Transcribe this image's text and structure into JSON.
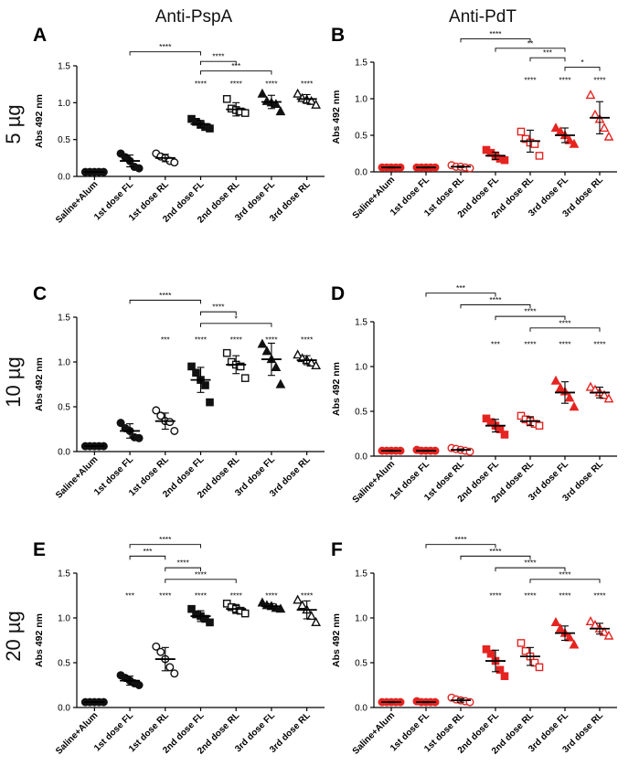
{
  "column_titles": [
    "Anti-PspA",
    "Anti-PdT"
  ],
  "row_labels": [
    "5 µg",
    "10 µg",
    "20 µg"
  ],
  "colors": {
    "PspA": "#111111",
    "PdT": "#e52421",
    "axis": "#000000"
  },
  "chart_data": [
    {
      "panel": "A",
      "type": "scatter",
      "column": "Anti-PspA",
      "row": "5 µg",
      "ylabel": "Abs 492 nm",
      "ylim": [
        0,
        1.5
      ],
      "yticks": [
        "0.0",
        "0.5",
        "1.0",
        "1.5"
      ],
      "categories": [
        "Saline+Alum",
        "1st dose FL",
        "1st dose RL",
        "2nd dose FL",
        "2nd dose RL",
        "3rd dose FL",
        "3rd dose RL"
      ],
      "series": [
        {
          "name": "Saline+Alum",
          "marker": "circle-filled",
          "mean": 0.06,
          "sd": 0.005,
          "points": [
            0.06,
            0.06,
            0.06,
            0.06,
            0.06
          ]
        },
        {
          "name": "1st dose FL",
          "marker": "circle-filled",
          "mean": 0.21,
          "sd": 0.08,
          "points": [
            0.31,
            0.26,
            0.21,
            0.13,
            0.11
          ]
        },
        {
          "name": "1st dose RL",
          "marker": "circle-open",
          "mean": 0.25,
          "sd": 0.05,
          "points": [
            0.31,
            0.27,
            0.25,
            0.21,
            0.19
          ]
        },
        {
          "name": "2nd dose FL",
          "marker": "square-filled",
          "mean": 0.71,
          "sd": 0.05,
          "points": [
            0.78,
            0.74,
            0.7,
            0.67,
            0.65
          ]
        },
        {
          "name": "2nd dose RL",
          "marker": "square-open",
          "mean": 0.91,
          "sd": 0.09,
          "points": [
            1.05,
            0.92,
            0.9,
            0.88,
            0.86
          ]
        },
        {
          "name": "3rd dose FL",
          "marker": "triangle-filled",
          "mean": 1.01,
          "sd": 0.09,
          "points": [
            1.12,
            1.02,
            1.0,
            0.98,
            0.88
          ]
        },
        {
          "name": "3rd dose RL",
          "marker": "triangle-open",
          "mean": 1.05,
          "sd": 0.06,
          "points": [
            1.12,
            1.06,
            1.04,
            1.02,
            0.97
          ]
        }
      ],
      "stars_above": [
        "",
        "",
        "",
        "****",
        "****",
        "****",
        "****"
      ],
      "brackets": [
        {
          "from": "1st dose FL",
          "to": "2nd dose FL",
          "label": "****"
        },
        {
          "from": "2nd dose FL",
          "to": "2nd dose RL",
          "label": "****"
        },
        {
          "from": "2nd dose FL",
          "to": "3rd dose FL",
          "label": "***"
        }
      ]
    },
    {
      "panel": "B",
      "type": "scatter",
      "column": "Anti-PdT",
      "row": "5 µg",
      "ylabel": "Abs 492 nm",
      "ylim": [
        0,
        1.5
      ],
      "yticks": [
        "0.0",
        "0.5",
        "1.0",
        "1.5"
      ],
      "categories": [
        "Saline+Alum",
        "1st dose FL",
        "1st dose RL",
        "2nd dose FL",
        "2nd dose RL",
        "3rd dose FL",
        "3rd dose RL"
      ],
      "series": [
        {
          "name": "Saline+Alum",
          "marker": "circle-filled",
          "mean": 0.06,
          "sd": 0.005,
          "points": [
            0.06,
            0.06,
            0.06,
            0.06,
            0.06
          ]
        },
        {
          "name": "1st dose FL",
          "marker": "circle-filled",
          "mean": 0.06,
          "sd": 0.005,
          "points": [
            0.06,
            0.06,
            0.06,
            0.06,
            0.06
          ]
        },
        {
          "name": "1st dose RL",
          "marker": "circle-open",
          "mean": 0.07,
          "sd": 0.01,
          "points": [
            0.09,
            0.07,
            0.07,
            0.06,
            0.05
          ]
        },
        {
          "name": "2nd dose FL",
          "marker": "square-filled",
          "mean": 0.22,
          "sd": 0.05,
          "points": [
            0.3,
            0.26,
            0.21,
            0.18,
            0.16
          ]
        },
        {
          "name": "2nd dose RL",
          "marker": "square-open",
          "mean": 0.42,
          "sd": 0.15,
          "points": [
            0.55,
            0.45,
            0.4,
            0.38,
            0.22
          ]
        },
        {
          "name": "3rd dose FL",
          "marker": "triangle-filled",
          "mean": 0.5,
          "sd": 0.1,
          "points": [
            0.6,
            0.55,
            0.5,
            0.43,
            0.38
          ]
        },
        {
          "name": "3rd dose RL",
          "marker": "triangle-open",
          "mean": 0.74,
          "sd": 0.22,
          "points": [
            1.05,
            0.78,
            0.72,
            0.6,
            0.48
          ]
        }
      ],
      "stars_above": [
        "",
        "",
        "",
        "",
        "****",
        "****",
        "****"
      ],
      "brackets": [
        {
          "from": "1st dose RL",
          "to": "2nd dose RL",
          "label": "****"
        },
        {
          "from": "2nd dose FL",
          "to": "3rd dose FL",
          "label": "**"
        },
        {
          "from": "2nd dose RL",
          "to": "3rd dose FL",
          "label": "***"
        },
        {
          "from": "3rd dose FL",
          "to": "3rd dose RL",
          "label": "*"
        }
      ]
    },
    {
      "panel": "C",
      "type": "scatter",
      "column": "Anti-PspA",
      "row": "10 µg",
      "ylabel": "Abs 492 nm",
      "ylim": [
        0,
        1.5
      ],
      "yticks": [
        "0.0",
        "0.5",
        "1.0",
        "1.5"
      ],
      "categories": [
        "Saline+Alum",
        "1st dose FL",
        "1st dose RL",
        "2nd dose FL",
        "2nd dose RL",
        "3rd dose FL",
        "3rd dose RL"
      ],
      "series": [
        {
          "name": "Saline+Alum",
          "marker": "circle-filled",
          "mean": 0.06,
          "sd": 0.005,
          "points": [
            0.06,
            0.06,
            0.06,
            0.06,
            0.06
          ]
        },
        {
          "name": "1st dose FL",
          "marker": "circle-filled",
          "mean": 0.23,
          "sd": 0.08,
          "points": [
            0.32,
            0.26,
            0.23,
            0.16,
            0.15
          ]
        },
        {
          "name": "1st dose RL",
          "marker": "circle-open",
          "mean": 0.34,
          "sd": 0.09,
          "points": [
            0.46,
            0.4,
            0.34,
            0.33,
            0.23
          ]
        },
        {
          "name": "2nd dose FL",
          "marker": "square-filled",
          "mean": 0.8,
          "sd": 0.14,
          "points": [
            0.95,
            0.88,
            0.8,
            0.74,
            0.55
          ]
        },
        {
          "name": "2nd dose RL",
          "marker": "square-open",
          "mean": 0.97,
          "sd": 0.1,
          "points": [
            1.1,
            1.0,
            0.97,
            0.95,
            0.82
          ]
        },
        {
          "name": "3rd dose FL",
          "marker": "triangle-filled",
          "mean": 1.03,
          "sd": 0.18,
          "points": [
            1.2,
            1.12,
            1.03,
            0.94,
            0.75
          ]
        },
        {
          "name": "3rd dose RL",
          "marker": "triangle-open",
          "mean": 1.02,
          "sd": 0.05,
          "points": [
            1.08,
            1.04,
            1.02,
            0.99,
            0.96
          ]
        }
      ],
      "stars_above": [
        "",
        "",
        "***",
        "****",
        "****",
        "****",
        "****"
      ],
      "brackets": [
        {
          "from": "1st dose FL",
          "to": "2nd dose FL",
          "label": "****"
        },
        {
          "from": "2nd dose FL",
          "to": "2nd dose RL",
          "label": "****"
        },
        {
          "from": "2nd dose FL",
          "to": "3rd dose FL",
          "label": "*"
        }
      ]
    },
    {
      "panel": "D",
      "type": "scatter",
      "column": "Anti-PdT",
      "row": "10 µg",
      "ylabel": "Abs 492 nm",
      "ylim": [
        0,
        1.5
      ],
      "yticks": [
        "0.0",
        "0.5",
        "1.0",
        "1.5"
      ],
      "categories": [
        "Saline+Alum",
        "1st dose FL",
        "1st dose RL",
        "2nd dose FL",
        "2nd dose RL",
        "3rd dose FL",
        "3rd dose RL"
      ],
      "series": [
        {
          "name": "Saline+Alum",
          "marker": "circle-filled",
          "mean": 0.06,
          "sd": 0.005,
          "points": [
            0.06,
            0.06,
            0.06,
            0.06,
            0.06
          ]
        },
        {
          "name": "1st dose FL",
          "marker": "circle-filled",
          "mean": 0.06,
          "sd": 0.005,
          "points": [
            0.07,
            0.06,
            0.06,
            0.06,
            0.06
          ]
        },
        {
          "name": "1st dose RL",
          "marker": "circle-open",
          "mean": 0.07,
          "sd": 0.01,
          "points": [
            0.09,
            0.08,
            0.07,
            0.06,
            0.05
          ]
        },
        {
          "name": "2nd dose FL",
          "marker": "square-filled",
          "mean": 0.34,
          "sd": 0.07,
          "points": [
            0.42,
            0.38,
            0.34,
            0.3,
            0.24
          ]
        },
        {
          "name": "2nd dose RL",
          "marker": "square-open",
          "mean": 0.39,
          "sd": 0.05,
          "points": [
            0.45,
            0.41,
            0.39,
            0.36,
            0.34
          ]
        },
        {
          "name": "3rd dose FL",
          "marker": "triangle-filled",
          "mean": 0.71,
          "sd": 0.12,
          "points": [
            0.84,
            0.76,
            0.72,
            0.65,
            0.55
          ]
        },
        {
          "name": "3rd dose RL",
          "marker": "triangle-open",
          "mean": 0.71,
          "sd": 0.06,
          "points": [
            0.77,
            0.74,
            0.71,
            0.68,
            0.64
          ]
        }
      ],
      "stars_above": [
        "",
        "",
        "",
        "***",
        "****",
        "****",
        "****"
      ],
      "brackets": [
        {
          "from": "1st dose FL",
          "to": "2nd dose FL",
          "label": "***"
        },
        {
          "from": "1st dose RL",
          "to": "2nd dose RL",
          "label": "****"
        },
        {
          "from": "2nd dose FL",
          "to": "3rd dose FL",
          "label": "****"
        },
        {
          "from": "2nd dose RL",
          "to": "3rd dose RL",
          "label": "****"
        }
      ]
    },
    {
      "panel": "E",
      "type": "scatter",
      "column": "Anti-PspA",
      "row": "20 µg",
      "ylabel": "Abs 492 nm",
      "ylim": [
        0,
        1.5
      ],
      "yticks": [
        "0.0",
        "0.5",
        "1.0",
        "1.5"
      ],
      "categories": [
        "Saline+Alum",
        "1st dose FL",
        "1st dose RL",
        "2nd dose FL",
        "2nd dose RL",
        "3rd dose FL",
        "3rd dose RL"
      ],
      "series": [
        {
          "name": "Saline+Alum",
          "marker": "circle-filled",
          "mean": 0.06,
          "sd": 0.005,
          "points": [
            0.06,
            0.06,
            0.06,
            0.06,
            0.06
          ]
        },
        {
          "name": "1st dose FL",
          "marker": "circle-filled",
          "mean": 0.3,
          "sd": 0.05,
          "points": [
            0.36,
            0.33,
            0.3,
            0.27,
            0.25
          ]
        },
        {
          "name": "1st dose RL",
          "marker": "circle-open",
          "mean": 0.54,
          "sd": 0.13,
          "points": [
            0.68,
            0.62,
            0.54,
            0.45,
            0.38
          ]
        },
        {
          "name": "2nd dose FL",
          "marker": "square-filled",
          "mean": 1.02,
          "sd": 0.06,
          "points": [
            1.1,
            1.04,
            1.02,
            0.99,
            0.95
          ]
        },
        {
          "name": "2nd dose RL",
          "marker": "square-open",
          "mean": 1.1,
          "sd": 0.05,
          "points": [
            1.16,
            1.12,
            1.1,
            1.08,
            1.05
          ]
        },
        {
          "name": "3rd dose FL",
          "marker": "triangle-filled",
          "mean": 1.13,
          "sd": 0.03,
          "points": [
            1.17,
            1.14,
            1.13,
            1.11,
            1.1
          ]
        },
        {
          "name": "3rd dose RL",
          "marker": "triangle-open",
          "mean": 1.09,
          "sd": 0.1,
          "points": [
            1.2,
            1.14,
            1.09,
            1.02,
            0.95
          ]
        }
      ],
      "stars_above": [
        "",
        "***",
        "****",
        "****",
        "****",
        "****",
        "****"
      ],
      "brackets": [
        {
          "from": "1st dose FL",
          "to": "2nd dose FL",
          "label": "****"
        },
        {
          "from": "1st dose FL",
          "to": "1st dose RL",
          "label": "***"
        },
        {
          "from": "1st dose RL",
          "to": "2nd dose FL",
          "label": "****"
        },
        {
          "from": "1st dose RL",
          "to": "2nd dose RL",
          "label": "****"
        }
      ]
    },
    {
      "panel": "F",
      "type": "scatter",
      "column": "Anti-PdT",
      "row": "20 µg",
      "ylabel": "Abs 492 nm",
      "ylim": [
        0,
        1.5
      ],
      "yticks": [
        "0.0",
        "0.5",
        "1.0",
        "1.5"
      ],
      "categories": [
        "Saline+Alum",
        "1st dose FL",
        "1st dose RL",
        "2nd dose FL",
        "2nd dose RL",
        "3rd dose FL",
        "3rd dose RL"
      ],
      "series": [
        {
          "name": "Saline+Alum",
          "marker": "circle-filled",
          "mean": 0.06,
          "sd": 0.005,
          "points": [
            0.06,
            0.06,
            0.06,
            0.06,
            0.06
          ]
        },
        {
          "name": "1st dose FL",
          "marker": "circle-filled",
          "mean": 0.06,
          "sd": 0.005,
          "points": [
            0.07,
            0.06,
            0.06,
            0.06,
            0.06
          ]
        },
        {
          "name": "1st dose RL",
          "marker": "circle-open",
          "mean": 0.08,
          "sd": 0.02,
          "points": [
            0.11,
            0.09,
            0.08,
            0.07,
            0.06
          ]
        },
        {
          "name": "2nd dose FL",
          "marker": "square-filled",
          "mean": 0.52,
          "sd": 0.12,
          "points": [
            0.65,
            0.6,
            0.52,
            0.42,
            0.35
          ]
        },
        {
          "name": "2nd dose RL",
          "marker": "square-open",
          "mean": 0.57,
          "sd": 0.1,
          "points": [
            0.72,
            0.63,
            0.57,
            0.5,
            0.45
          ]
        },
        {
          "name": "3rd dose FL",
          "marker": "triangle-filled",
          "mean": 0.83,
          "sd": 0.08,
          "points": [
            0.95,
            0.88,
            0.83,
            0.78,
            0.7
          ]
        },
        {
          "name": "3rd dose RL",
          "marker": "triangle-open",
          "mean": 0.88,
          "sd": 0.06,
          "points": [
            0.96,
            0.92,
            0.88,
            0.84,
            0.8
          ]
        }
      ],
      "stars_above": [
        "",
        "",
        "",
        "****",
        "****",
        "****",
        "****"
      ],
      "brackets": [
        {
          "from": "1st dose FL",
          "to": "2nd dose FL",
          "label": "****"
        },
        {
          "from": "1st dose RL",
          "to": "2nd dose RL",
          "label": "****"
        },
        {
          "from": "2nd dose FL",
          "to": "3rd dose FL",
          "label": "****"
        },
        {
          "from": "2nd dose RL",
          "to": "3rd dose RL",
          "label": "****"
        }
      ]
    }
  ]
}
